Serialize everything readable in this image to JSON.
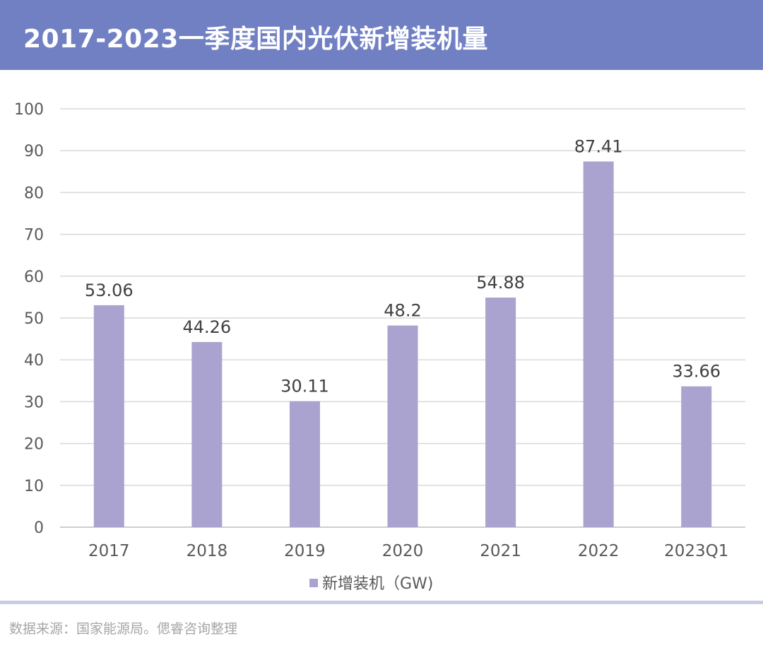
{
  "header": {
    "title": "2017-2023一季度国内光伏新增装机量"
  },
  "footer": {
    "source": "数据来源：国家能源局。偲睿咨询整理"
  },
  "chart_data": {
    "type": "bar",
    "title": "2017-2023一季度国内光伏新增装机量",
    "categories": [
      "2017",
      "2018",
      "2019",
      "2020",
      "2021",
      "2022",
      "2023Q1"
    ],
    "series": [
      {
        "name": "新增装机（GW)",
        "values": [
          53.06,
          44.26,
          30.11,
          48.2,
          54.88,
          87.41,
          33.66
        ]
      }
    ],
    "data_labels": [
      "53.06",
      "44.26",
      "30.11",
      "48.2",
      "54.88",
      "87.41",
      "33.66"
    ],
    "y_ticks": [
      "0",
      "10",
      "20",
      "30",
      "40",
      "50",
      "60",
      "70",
      "80",
      "90",
      "100"
    ],
    "ylim": [
      0,
      100
    ],
    "grid": true,
    "legend": "bottom",
    "colors": {
      "bar": "#aaa3cf",
      "grid": "#d9d9d9",
      "axis": "#bfbfbf",
      "text": "#595959",
      "label": "#404040"
    }
  }
}
